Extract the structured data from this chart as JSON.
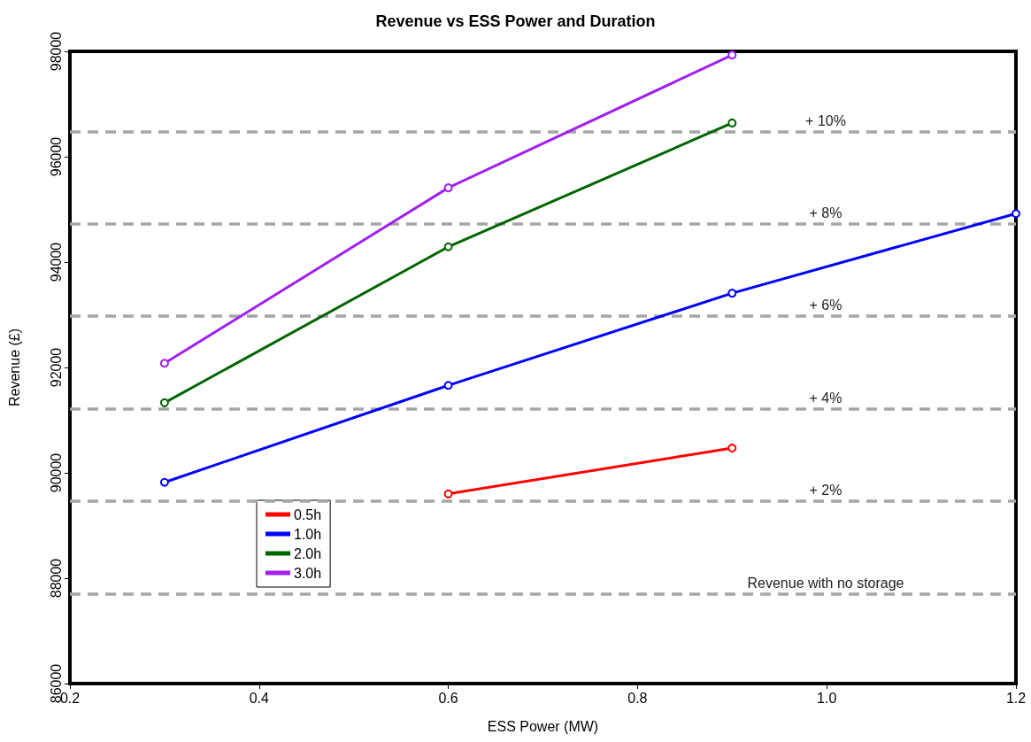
{
  "chart_data": {
    "type": "line",
    "title": "Revenue vs ESS Power and Duration",
    "xlabel": "ESS Power (MW)",
    "ylabel": "Revenue (£)",
    "xlim": [
      0.2,
      1.2
    ],
    "xticks": [
      0.2,
      0.4,
      0.6,
      0.8,
      {
        "value": 1.0,
        "label": "1.0"
      },
      1.2
    ],
    "ylim": [
      86000,
      98000
    ],
    "yticks": [
      86000,
      88000,
      90000,
      92000,
      94000,
      96000,
      98000
    ],
    "grid": false,
    "legend": "bottom left",
    "marker": "circle",
    "line_style": "solid",
    "series": [
      {
        "name": "0.5h",
        "color": "#ff0000",
        "x": [
          0.6,
          0.9
        ],
        "values": [
          89600,
          90470
        ]
      },
      {
        "name": "1.0h",
        "color": "#0000ff",
        "x": [
          0.3,
          0.6,
          0.9,
          1.2
        ],
        "values": [
          89820,
          91660,
          93410,
          94920
        ]
      },
      {
        "name": "2.0h",
        "color": "#006400",
        "x": [
          0.3,
          0.6,
          0.9
        ],
        "values": [
          91330,
          94290,
          96640
        ]
      },
      {
        "name": "3.0h",
        "color": "#a020f0",
        "x": [
          0.3,
          0.6,
          0.9
        ],
        "values": [
          92080,
          95410,
          97930
        ]
      }
    ],
    "ref_lines": [
      {
        "axis": "y",
        "value": 87710,
        "color": "#a6a6a6",
        "line_style": "dashed"
      },
      {
        "axis": "y",
        "value": 89470,
        "color": "#a6a6a6",
        "line_style": "dashed"
      },
      {
        "axis": "y",
        "value": 91220,
        "color": "#a6a6a6",
        "line_style": "dashed"
      },
      {
        "axis": "y",
        "value": 92980,
        "color": "#a6a6a6",
        "line_style": "dashed"
      },
      {
        "axis": "y",
        "value": 94730,
        "color": "#a6a6a6",
        "line_style": "dashed"
      },
      {
        "axis": "y",
        "value": 96480,
        "color": "#a6a6a6",
        "line_style": "dashed"
      }
    ],
    "annotations": [
      {
        "text": "Revenue with no storage",
        "y": 87710
      },
      {
        "text": "+ 2%",
        "y": 89470
      },
      {
        "text": "+ 4%",
        "y": 91220
      },
      {
        "text": "+ 6%",
        "y": 92980
      },
      {
        "text": "+ 8%",
        "y": 94730
      },
      {
        "text": "+ 10%",
        "y": 96480
      }
    ]
  }
}
